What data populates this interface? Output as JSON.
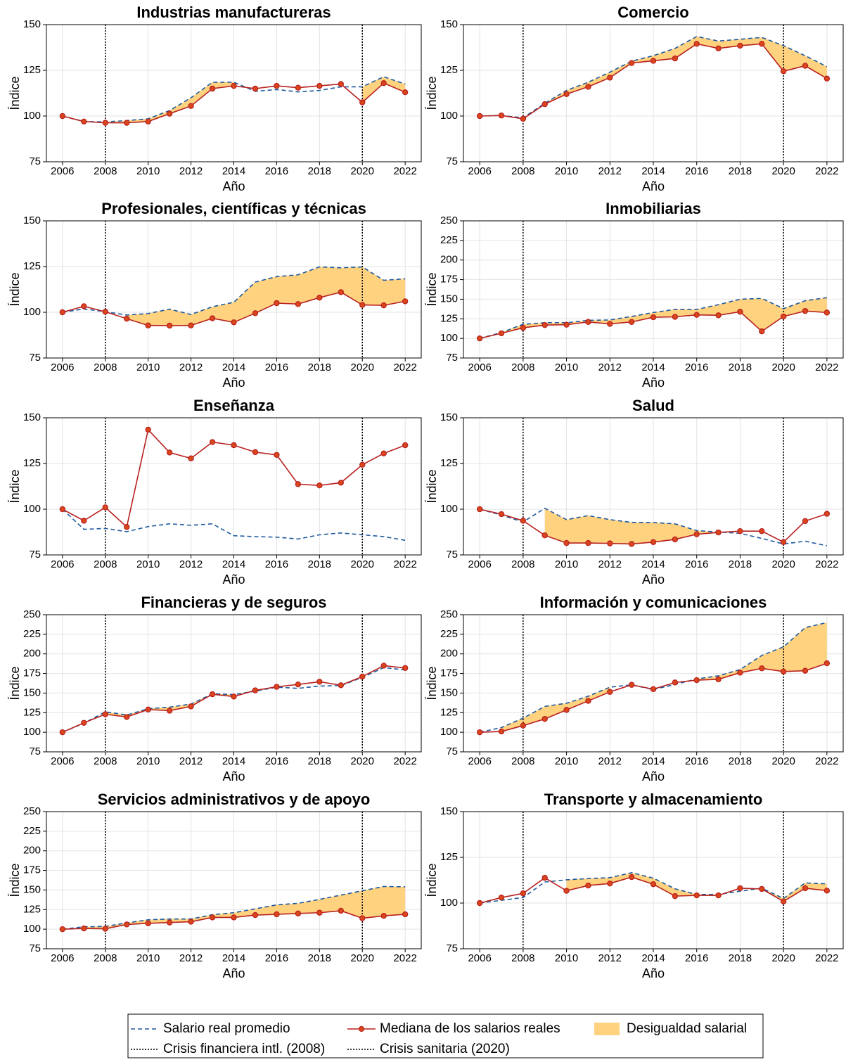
{
  "legend": {
    "entries": [
      {
        "label": "Salario real promedio",
        "color": "#1f5a9e",
        "style": "dashed"
      },
      {
        "label": "Mediana de los salarios reales",
        "color": "#b8201f",
        "style": "line-marker"
      },
      {
        "label": "Desigualdad salarial",
        "color": "#ffd27f",
        "style": "area"
      },
      {
        "label": "Crisis financiera intl. (2008)",
        "color": "#000000",
        "style": "dotted"
      },
      {
        "label": "Crisis sanitaria (2020)",
        "color": "#000000",
        "style": "dotted"
      }
    ]
  },
  "chart_data": [
    {
      "type": "line",
      "title": "Industrias manufactureras",
      "xlabel": "Año",
      "ylabel": "Índice",
      "x": [
        2006,
        2007,
        2008,
        2009,
        2010,
        2011,
        2012,
        2013,
        2014,
        2015,
        2016,
        2017,
        2018,
        2019,
        2020,
        2021,
        2022
      ],
      "xlim": [
        2005.25,
        2022.75
      ],
      "xticks": [
        2006,
        2008,
        2010,
        2012,
        2014,
        2016,
        2018,
        2020,
        2022
      ],
      "ylim": [
        75,
        150
      ],
      "yticks": [
        75,
        100,
        125,
        150
      ],
      "grid": true,
      "vlines": [
        2008,
        2020
      ],
      "series": [
        {
          "values": [
            100,
            97,
            96.8,
            97.5,
            98.5,
            103,
            110,
            118.5,
            118.5,
            113.5,
            114.5,
            113.2,
            114,
            116,
            116,
            121.5,
            117.5
          ]
        },
        {
          "values": [
            100,
            97,
            96.3,
            96.3,
            97,
            101.3,
            105.5,
            115,
            116.5,
            115,
            116.5,
            115.5,
            116.5,
            117.5,
            107.5,
            118,
            113
          ]
        }
      ]
    },
    {
      "type": "line",
      "title": "Comercio",
      "xlabel": "Año",
      "ylabel": "Índice",
      "x": [
        2006,
        2007,
        2008,
        2009,
        2010,
        2011,
        2012,
        2013,
        2014,
        2015,
        2016,
        2017,
        2018,
        2019,
        2020,
        2021,
        2022
      ],
      "xlim": [
        2005.25,
        2022.75
      ],
      "xticks": [
        2006,
        2008,
        2010,
        2012,
        2014,
        2016,
        2018,
        2020,
        2022
      ],
      "ylim": [
        75,
        150
      ],
      "yticks": [
        75,
        100,
        125,
        150
      ],
      "grid": true,
      "vlines": [
        2008,
        2020
      ],
      "series": [
        {
          "values": [
            100,
            100.3,
            99,
            107,
            114,
            118.5,
            124,
            130,
            133,
            137,
            143.5,
            141,
            142,
            143,
            138.5,
            133,
            127
          ]
        },
        {
          "values": [
            100,
            100.3,
            98.5,
            106.5,
            112,
            116,
            121,
            129,
            130.2,
            131.5,
            139.5,
            137,
            138.5,
            139.5,
            124.5,
            127.5,
            120.5
          ]
        }
      ]
    },
    {
      "type": "line",
      "title": "Profesionales, científicas y técnicas",
      "xlabel": "Año",
      "ylabel": "Índice",
      "x": [
        2006,
        2007,
        2008,
        2009,
        2010,
        2011,
        2012,
        2013,
        2014,
        2015,
        2016,
        2017,
        2018,
        2019,
        2020,
        2021,
        2022
      ],
      "xlim": [
        2005.25,
        2022.75
      ],
      "xticks": [
        2006,
        2008,
        2010,
        2012,
        2014,
        2016,
        2018,
        2020,
        2022
      ],
      "ylim": [
        75,
        150
      ],
      "yticks": [
        75,
        100,
        125,
        150
      ],
      "grid": true,
      "vlines": [
        2008,
        2020
      ],
      "series": [
        {
          "values": [
            100,
            101.8,
            100.3,
            98.5,
            99.3,
            101.7,
            98.8,
            103,
            105.5,
            116.5,
            119.5,
            120.5,
            124.8,
            124.3,
            124.8,
            117.5,
            118.3
          ]
        },
        {
          "values": [
            100,
            103.3,
            100.3,
            96.5,
            92.8,
            92.7,
            92.8,
            96.7,
            94.5,
            99.5,
            105,
            104.5,
            108,
            111,
            104,
            103.8,
            106
          ]
        }
      ]
    },
    {
      "type": "line",
      "title": "Inmobiliarias",
      "xlabel": "Año",
      "ylabel": "Índice",
      "x": [
        2006,
        2007,
        2008,
        2009,
        2010,
        2011,
        2012,
        2013,
        2014,
        2015,
        2016,
        2017,
        2018,
        2019,
        2020,
        2021,
        2022
      ],
      "xlim": [
        2005.25,
        2022.75
      ],
      "xticks": [
        2006,
        2008,
        2010,
        2012,
        2014,
        2016,
        2018,
        2020,
        2022
      ],
      "ylim": [
        75,
        250
      ],
      "yticks": [
        75,
        100,
        125,
        150,
        175,
        200,
        225,
        250
      ],
      "grid": true,
      "vlines": [
        2008,
        2020
      ],
      "series": [
        {
          "values": [
            100,
            107.5,
            118,
            120,
            120,
            123,
            123.5,
            128,
            133,
            137,
            137,
            143,
            150,
            151,
            138,
            148,
            152
          ]
        },
        {
          "values": [
            100,
            106.5,
            113.5,
            117,
            117.5,
            121,
            118.5,
            121,
            127,
            127.5,
            130,
            129.5,
            134,
            109,
            128,
            135,
            133
          ]
        }
      ]
    },
    {
      "type": "line",
      "title": "Enseñanza",
      "xlabel": "Año",
      "ylabel": "Índice",
      "x": [
        2006,
        2007,
        2008,
        2009,
        2010,
        2011,
        2012,
        2013,
        2014,
        2015,
        2016,
        2017,
        2018,
        2019,
        2020,
        2021,
        2022
      ],
      "xlim": [
        2005.25,
        2022.75
      ],
      "xticks": [
        2006,
        2008,
        2010,
        2012,
        2014,
        2016,
        2018,
        2020,
        2022
      ],
      "ylim": [
        75,
        150
      ],
      "yticks": [
        75,
        100,
        125,
        150
      ],
      "grid": true,
      "vlines": [
        2008,
        2020
      ],
      "series": [
        {
          "values": [
            100,
            89,
            89.5,
            87.7,
            90.5,
            92,
            91.2,
            92,
            85.5,
            85,
            84.7,
            83.7,
            86,
            87,
            86,
            85,
            83
          ]
        },
        {
          "values": [
            100,
            93.7,
            101,
            90.3,
            143.5,
            131,
            127.8,
            136.7,
            135,
            131.2,
            129.7,
            113.7,
            113,
            114.5,
            124.3,
            130.5,
            135
          ]
        }
      ]
    },
    {
      "type": "line",
      "title": "Salud",
      "xlabel": "Año",
      "ylabel": "Índice",
      "x": [
        2006,
        2007,
        2008,
        2009,
        2010,
        2011,
        2012,
        2013,
        2014,
        2015,
        2016,
        2017,
        2018,
        2019,
        2020,
        2021,
        2022
      ],
      "xlim": [
        2005.25,
        2022.75
      ],
      "xticks": [
        2006,
        2008,
        2010,
        2012,
        2014,
        2016,
        2018,
        2020,
        2022
      ],
      "ylim": [
        75,
        150
      ],
      "yticks": [
        75,
        100,
        125,
        150
      ],
      "grid": true,
      "vlines": [
        2008,
        2020
      ],
      "series": [
        {
          "values": [
            100,
            96.8,
            93,
            100.5,
            94.3,
            96.5,
            94.3,
            92.8,
            92.7,
            92,
            88.3,
            87.5,
            86.8,
            84,
            81,
            82.5,
            80
          ]
        },
        {
          "values": [
            100,
            97.3,
            93.7,
            85.7,
            81.5,
            81.5,
            81.3,
            81,
            82,
            83.5,
            86.3,
            87.3,
            88,
            88,
            82,
            93.5,
            97.5
          ]
        }
      ]
    },
    {
      "type": "line",
      "title": "Financieras y de seguros",
      "xlabel": "Año",
      "ylabel": "Índice",
      "x": [
        2006,
        2007,
        2008,
        2009,
        2010,
        2011,
        2012,
        2013,
        2014,
        2015,
        2016,
        2017,
        2018,
        2019,
        2020,
        2021,
        2022
      ],
      "xlim": [
        2005.25,
        2022.75
      ],
      "xticks": [
        2006,
        2008,
        2010,
        2012,
        2014,
        2016,
        2018,
        2020,
        2022
      ],
      "ylim": [
        75,
        250
      ],
      "yticks": [
        75,
        100,
        125,
        150,
        175,
        200,
        225,
        250
      ],
      "grid": true,
      "vlines": [
        2008,
        2020
      ],
      "series": [
        {
          "values": [
            100,
            111.5,
            126,
            122,
            130,
            132,
            136,
            149,
            148,
            152.5,
            157.5,
            156,
            159,
            159.5,
            170,
            182.5,
            179.5
          ]
        },
        {
          "values": [
            100,
            112,
            123,
            119.5,
            129,
            127.5,
            133,
            148.5,
            145.5,
            153.5,
            158,
            161,
            164.5,
            160,
            171,
            185,
            182
          ]
        }
      ]
    },
    {
      "type": "line",
      "title": "Información y comunicaciones",
      "xlabel": "Año",
      "ylabel": "Índice",
      "x": [
        2006,
        2007,
        2008,
        2009,
        2010,
        2011,
        2012,
        2013,
        2014,
        2015,
        2016,
        2017,
        2018,
        2019,
        2020,
        2021,
        2022
      ],
      "xlim": [
        2005.25,
        2022.75
      ],
      "xticks": [
        2006,
        2008,
        2010,
        2012,
        2014,
        2016,
        2018,
        2020,
        2022
      ],
      "ylim": [
        75,
        250
      ],
      "yticks": [
        75,
        100,
        125,
        150,
        175,
        200,
        225,
        250
      ],
      "grid": true,
      "vlines": [
        2008,
        2020
      ],
      "series": [
        {
          "values": [
            100,
            106,
            118,
            133,
            137,
            146,
            157.5,
            160.5,
            154.5,
            161,
            168,
            172,
            180,
            198,
            209,
            233.5,
            240
          ]
        },
        {
          "values": [
            100,
            101,
            108.5,
            117,
            128.5,
            140,
            151.5,
            160.5,
            155,
            163.5,
            166.5,
            167.5,
            176,
            181.5,
            177.5,
            178.5,
            188
          ]
        }
      ]
    },
    {
      "type": "line",
      "title": "Servicios administrativos y de apoyo",
      "xlabel": "Año",
      "ylabel": "Índice",
      "x": [
        2006,
        2007,
        2008,
        2009,
        2010,
        2011,
        2012,
        2013,
        2014,
        2015,
        2016,
        2017,
        2018,
        2019,
        2020,
        2021,
        2022
      ],
      "xlim": [
        2005.25,
        2022.75
      ],
      "xticks": [
        2006,
        2008,
        2010,
        2012,
        2014,
        2016,
        2018,
        2020,
        2022
      ],
      "ylim": [
        75,
        250
      ],
      "yticks": [
        75,
        100,
        125,
        150,
        175,
        200,
        225,
        250
      ],
      "grid": true,
      "vlines": [
        2008,
        2020
      ],
      "series": [
        {
          "values": [
            100,
            103,
            103.5,
            108,
            112,
            113,
            113,
            118.5,
            121,
            126,
            131,
            133,
            138,
            143.5,
            149,
            154.5,
            154
          ]
        },
        {
          "values": [
            100,
            101,
            100.5,
            106,
            107.5,
            108.5,
            109.5,
            115,
            115,
            118,
            119,
            120,
            121,
            123.5,
            114,
            117,
            119
          ]
        }
      ]
    },
    {
      "type": "line",
      "title": "Transporte y almacenamiento",
      "xlabel": "Año",
      "ylabel": "Índice",
      "x": [
        2006,
        2007,
        2008,
        2009,
        2010,
        2011,
        2012,
        2013,
        2014,
        2015,
        2016,
        2017,
        2018,
        2019,
        2020,
        2021,
        2022
      ],
      "xlim": [
        2005.25,
        2022.75
      ],
      "xticks": [
        2006,
        2008,
        2010,
        2012,
        2014,
        2016,
        2018,
        2020,
        2022
      ],
      "ylim": [
        75,
        150
      ],
      "yticks": [
        75,
        100,
        125,
        150
      ],
      "grid": true,
      "vlines": [
        2008,
        2020
      ],
      "series": [
        {
          "values": [
            100,
            101.5,
            103,
            111.5,
            112.7,
            113.4,
            113.9,
            116.6,
            113.6,
            107.8,
            104.7,
            104.7,
            106.5,
            108.1,
            102.5,
            111,
            110.5
          ]
        },
        {
          "values": [
            100,
            103,
            105.3,
            113.8,
            106.7,
            109.6,
            110.7,
            114.2,
            110.3,
            103.8,
            104.2,
            104.2,
            108.1,
            107.7,
            100.9,
            108.1,
            106.8
          ]
        }
      ]
    }
  ]
}
